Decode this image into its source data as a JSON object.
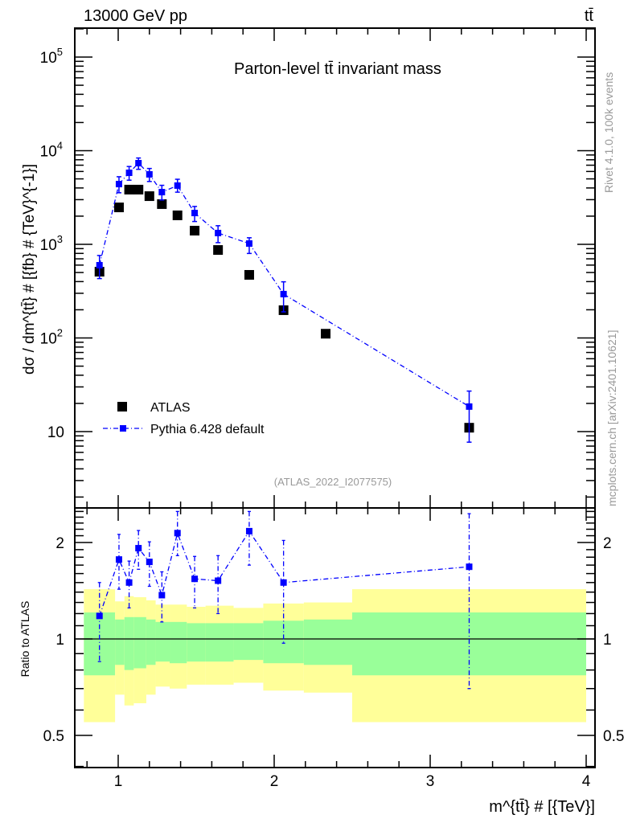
{
  "header": {
    "left": "13000 GeV pp",
    "right": "tt̄"
  },
  "side": {
    "rivet": "Rivet 4.1.0,  100k events",
    "mcplots": "mcplots.cern.ch [arXiv:2401.10621]"
  },
  "colors": {
    "pythia": "#0000ff",
    "atlas": "#000000",
    "band_outer": "#ffff99",
    "band_inner": "#99ff99"
  },
  "chart_data": [
    {
      "type": "scatter",
      "title": "Parton-level tt̄ invariant mass",
      "analysis_label": "(ATLAS_2022_I2077575)",
      "ylabel": "dσ / dm^{tt̄} # [{fb} # {TeV}^{-1}]",
      "yscale": "log",
      "ylim": [
        1.53,
        200000
      ],
      "xlim": [
        0.72,
        4.06
      ],
      "ytick_labels": [
        {
          "base": "10",
          "exp": "",
          "value": 10
        },
        {
          "base": "10",
          "exp": "2",
          "value": 100
        },
        {
          "base": "10",
          "exp": "3",
          "value": 1000
        },
        {
          "base": "10",
          "exp": "4",
          "value": 10000
        },
        {
          "base": "10",
          "exp": "5",
          "value": 100000
        }
      ],
      "legend": {
        "placement": "bottom-left",
        "entries": [
          "ATLAS",
          "Pythia 6.428 default"
        ]
      },
      "series": [
        {
          "name": "ATLAS",
          "x": [
            0.88,
            1.005,
            1.07,
            1.13,
            1.2,
            1.28,
            1.38,
            1.49,
            1.64,
            1.84,
            2.06,
            2.33,
            3.25
          ],
          "values": [
            510,
            2480,
            3840,
            3840,
            3270,
            2690,
            2040,
            1400,
            870,
            472,
            198,
            111,
            11
          ]
        },
        {
          "name": "Pythia 6.428 default",
          "x": [
            0.88,
            1.005,
            1.07,
            1.13,
            1.2,
            1.28,
            1.38,
            1.49,
            1.64,
            1.84,
            2.06,
            3.25
          ],
          "values": [
            598,
            4400,
            5810,
            7360,
            5590,
            3610,
            4240,
            2160,
            1320,
            1020,
            294,
            18.5
          ]
        }
      ]
    },
    {
      "type": "scatter",
      "ylabel": "Ratio to ATLAS",
      "xlabel": "m^{tt̄} # [{TeV}]",
      "yscale": "log",
      "ylim": [
        0.4,
        2.52
      ],
      "xlim": [
        0.72,
        4.06
      ],
      "xtick_labels": [
        "1",
        "2",
        "3",
        "4"
      ],
      "ytick_labels": [
        "0.5",
        "1",
        "2"
      ],
      "bands": {
        "bin_edges": [
          0.78,
          0.98,
          1.04,
          1.1,
          1.18,
          1.24,
          1.33,
          1.44,
          1.56,
          1.74,
          1.93,
          2.19,
          2.5,
          4.0
        ],
        "outer_hi": [
          1.43,
          1.31,
          1.36,
          1.35,
          1.32,
          1.28,
          1.28,
          1.26,
          1.27,
          1.25,
          1.29,
          1.3,
          1.43
        ],
        "inner_hi": [
          1.21,
          1.15,
          1.17,
          1.17,
          1.15,
          1.13,
          1.13,
          1.12,
          1.12,
          1.12,
          1.14,
          1.15,
          1.21
        ],
        "inner_lo": [
          0.77,
          0.83,
          0.8,
          0.81,
          0.83,
          0.85,
          0.84,
          0.85,
          0.85,
          0.86,
          0.84,
          0.83,
          0.77
        ],
        "outer_lo": [
          0.55,
          0.67,
          0.62,
          0.63,
          0.67,
          0.71,
          0.7,
          0.72,
          0.72,
          0.73,
          0.69,
          0.68,
          0.55
        ]
      },
      "series": [
        {
          "name": "Pythia 6.428 default",
          "x": [
            0.88,
            1.005,
            1.07,
            1.13,
            1.2,
            1.28,
            1.38,
            1.49,
            1.64,
            1.84,
            2.06,
            3.25
          ],
          "values": [
            1.18,
            1.77,
            1.5,
            1.92,
            1.74,
            1.37,
            2.14,
            1.54,
            1.52,
            2.17,
            1.5,
            1.68
          ],
          "err_lo": [
            0.85,
            1.43,
            1.25,
            1.65,
            1.46,
            1.13,
            1.82,
            1.25,
            1.2,
            1.7,
            0.97,
            0.7
          ],
          "err_hi": [
            1.5,
            2.12,
            1.75,
            2.18,
            2.01,
            1.62,
            2.5,
            1.81,
            1.82,
            2.5,
            2.03,
            2.46
          ]
        }
      ]
    }
  ]
}
